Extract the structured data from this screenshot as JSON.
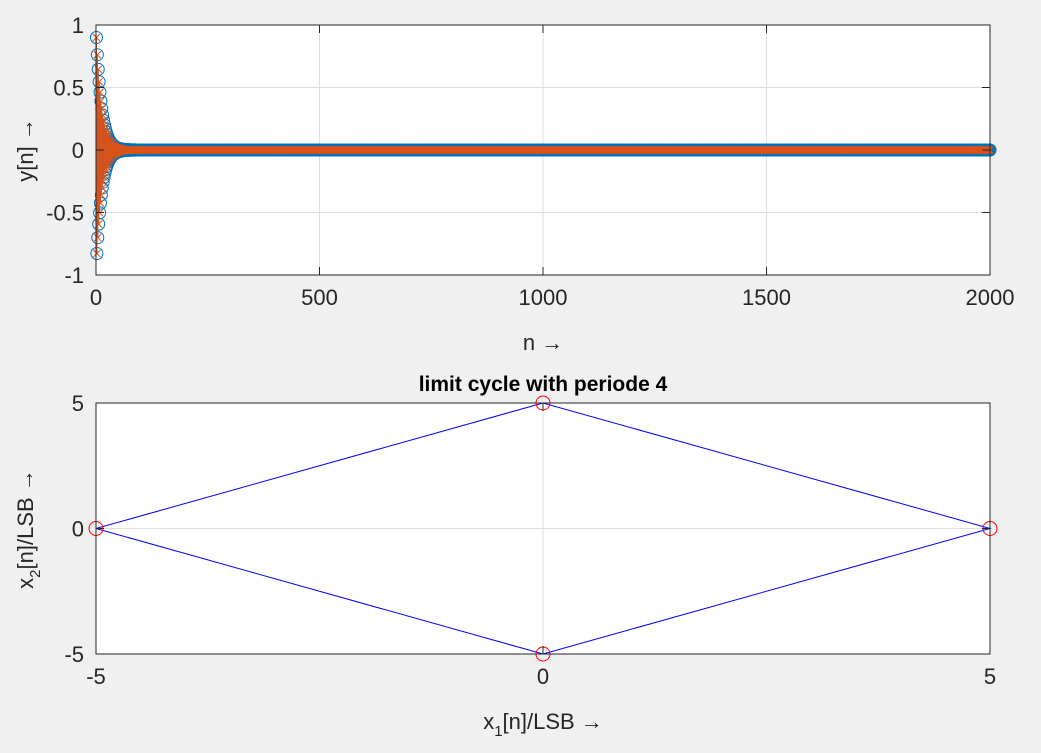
{
  "colors": {
    "figure_background": "#f0f0f0",
    "axes_background": "#ffffff",
    "axes_frame": "#262626",
    "grid": "#dfdfdf",
    "text": "#262626",
    "series_blue": "#0072bd",
    "series_orange": "#d95319",
    "line_blue": "#0000ff",
    "marker_red": "#ff0000"
  },
  "chart_data": [
    {
      "type": "scatter",
      "style": "stem",
      "title": "",
      "xlabel": "n →",
      "ylabel": "y[n] →",
      "xlim": [
        0,
        2000
      ],
      "ylim": [
        -1,
        1
      ],
      "xticks": [
        0,
        500,
        1000,
        1500,
        2000
      ],
      "xtick_labels": [
        "0",
        "500",
        "1000",
        "1500",
        "2000"
      ],
      "yticks": [
        -1,
        -0.5,
        0,
        0.5,
        1
      ],
      "ytick_labels": [
        "-1",
        "-0.5",
        "0",
        "0.5",
        "1"
      ],
      "grid": true,
      "legend": "none",
      "series": [
        {
          "marker": "circle",
          "color": "#0072bd",
          "decay": {
            "n0": 1,
            "y0": 0.9,
            "ratio": -0.92,
            "nmax": 2000
          }
        },
        {
          "marker": "x",
          "color": "#d95319",
          "decay": {
            "n0": 1,
            "y0": 0.9,
            "ratio": -0.92,
            "nmax": 2000
          }
        }
      ]
    },
    {
      "type": "line",
      "title": "limit cycle with periode 4",
      "xlabel": "x1[n]/LSB →",
      "ylabel": "x2[n]/LSB →",
      "xlim": [
        -5,
        5
      ],
      "ylim": [
        -5,
        5
      ],
      "xticks": [
        -5,
        0,
        5
      ],
      "xtick_labels": [
        "-5",
        "0",
        "5"
      ],
      "yticks": [
        -5,
        0,
        5
      ],
      "ytick_labels": [
        "-5",
        "0",
        "5"
      ],
      "grid": true,
      "legend": "none",
      "series": [
        {
          "color": "#0000ff",
          "marker": "none",
          "points": [
            [
              -5,
              0
            ],
            [
              0,
              5
            ],
            [
              5,
              0
            ],
            [
              0,
              -5
            ],
            [
              -5,
              0
            ]
          ]
        },
        {
          "color": "#ff0000",
          "marker": "circle",
          "points": [
            [
              -5,
              0
            ],
            [
              0,
              5
            ],
            [
              5,
              0
            ],
            [
              0,
              -5
            ]
          ]
        }
      ]
    }
  ]
}
